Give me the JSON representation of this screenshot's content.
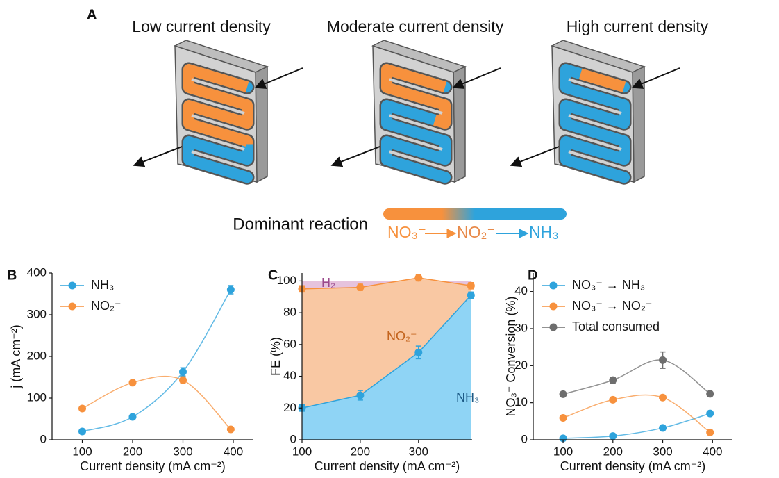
{
  "panel_a": {
    "panel_label": "A",
    "devices": [
      {
        "title": "Low current density"
      },
      {
        "title": "Moderate current density"
      },
      {
        "title": "High current density"
      }
    ],
    "reaction": {
      "title": "Dominant reaction",
      "steps": [
        "NO₃⁻",
        "NO₂⁻",
        "NH₃"
      ]
    }
  },
  "chart_data": [
    {
      "type": "line",
      "panel_label": "B",
      "smooth": true,
      "legend": "upper left",
      "xlabel": "Current density (mA cm⁻²)",
      "ylabel": "j (mA cm⁻²)",
      "x": [
        100,
        200,
        300,
        395
      ],
      "xlim": [
        40,
        440
      ],
      "xticks": [
        100,
        200,
        300,
        400
      ],
      "ylim": [
        0,
        400
      ],
      "yticks": [
        0,
        100,
        200,
        300,
        400
      ],
      "series": [
        {
          "name": "NH₃",
          "color": "#2ea3dc",
          "values": [
            20,
            55,
            163,
            360
          ],
          "errors": [
            3,
            6,
            10,
            10
          ]
        },
        {
          "name": "NO₂⁻",
          "color": "#f7913d",
          "values": [
            75,
            137,
            143,
            25
          ],
          "errors": [
            3,
            3,
            8,
            3
          ]
        }
      ]
    },
    {
      "type": "area",
      "panel_label": "C",
      "smooth": false,
      "legend": "inside",
      "xlabel": "Current density (mA cm⁻²)",
      "ylabel": "FE (%)",
      "x": [
        100,
        200,
        300,
        390
      ],
      "xlim": [
        100,
        392
      ],
      "xticks": [
        100,
        200,
        300
      ],
      "ylim": [
        0,
        105
      ],
      "yticks": [
        0,
        20,
        40,
        60,
        80,
        100
      ],
      "band": {
        "name": "H₂",
        "color": "#e6c3dd",
        "label_color": "#9b4a8c"
      },
      "series": [
        {
          "name": "NH₃",
          "color": "#2ea3dc",
          "fill": "#8fd4f5",
          "label_color": "#1d5a86",
          "values": [
            20,
            28,
            55,
            91
          ],
          "errors": [
            2,
            3,
            4,
            2
          ]
        },
        {
          "name": "NO₂⁻",
          "color": "#f7913d",
          "fill": "#f9c8a3",
          "label_color": "#c2621b",
          "values": [
            75,
            68,
            47,
            6
          ],
          "errors": [
            2,
            2,
            2,
            2
          ]
        }
      ]
    },
    {
      "type": "line",
      "panel_label": "D",
      "smooth": true,
      "legend": "upper left",
      "xlabel": "Current density (mA cm⁻²)",
      "ylabel": "NO₃⁻ Conversion (%)",
      "x": [
        100,
        200,
        300,
        395
      ],
      "xlim": [
        40,
        440
      ],
      "xticks": [
        100,
        200,
        300,
        400
      ],
      "ylim": [
        0,
        45
      ],
      "yticks": [
        0,
        10,
        20,
        30,
        40
      ],
      "series": [
        {
          "name": "NO₃⁻ → NH₃",
          "color": "#2ea3dc",
          "values": [
            0.4,
            1.0,
            3.2,
            7.1
          ],
          "errors": [
            0.2,
            0.2,
            0.3,
            0.3
          ]
        },
        {
          "name": "NO₃⁻ → NO₂⁻",
          "color": "#f7913d",
          "values": [
            5.9,
            10.8,
            11.4,
            2.0
          ],
          "errors": [
            0.3,
            0.4,
            0.4,
            0.2
          ]
        },
        {
          "name": "Total consumed",
          "color": "#6e6e6e",
          "values": [
            12.3,
            16.1,
            21.5,
            12.4
          ],
          "errors": [
            0.5,
            0.8,
            2.2,
            0.5
          ]
        }
      ]
    }
  ]
}
